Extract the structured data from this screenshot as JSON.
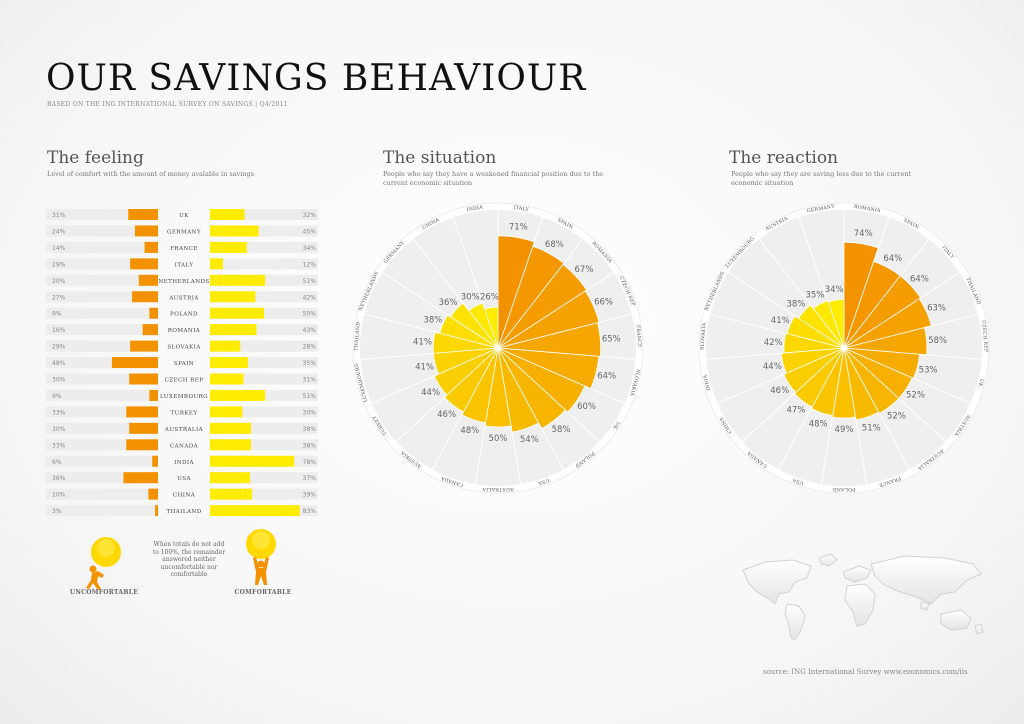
{
  "page": {
    "title": "OUR SAVINGS BEHAVIOUR",
    "subtitle": "BASED ON THE ING INTERNATIONAL SURVEY ON SAVINGS | Q4/2011",
    "source": "source: ING International Survey www.ezonomics.com/iis"
  },
  "colors": {
    "orange": "#f39200",
    "yellow": "#ffec00",
    "track": "#ededed"
  },
  "legend": {
    "uncomfortable": "UNCOMFORTABLE",
    "comfortable": "COMFORTABLE",
    "note": "When totals do not add to 100%, the remainder answered neither uncomfortable nor comfortable"
  },
  "chart_data": [
    {
      "id": "feeling",
      "type": "bar",
      "title": "The feeling",
      "subtitle": "Level of comfort with the amount of money avalable in savings",
      "categories": [
        "UK",
        "GERMANY",
        "FRANCE",
        "ITALY",
        "NETHERLANDS",
        "AUSTRIA",
        "POLAND",
        "ROMANIA",
        "SLOVAKIA",
        "SPAIN",
        "CZECH REP",
        "LUXEMBOURG",
        "TURKEY",
        "AUSTRALIA",
        "CANADA",
        "INDIA",
        "USA",
        "CHINA",
        "THAILAND"
      ],
      "series": [
        {
          "name": "UNCOMFORTABLE",
          "values": [
            31,
            24,
            14,
            29,
            20,
            27,
            9,
            16,
            29,
            48,
            30,
            9,
            33,
            30,
            33,
            6,
            36,
            10,
            3
          ]
        },
        {
          "name": "COMFORTABLE",
          "values": [
            32,
            45,
            34,
            12,
            51,
            42,
            50,
            43,
            28,
            35,
            31,
            51,
            30,
            38,
            38,
            78,
            37,
            39,
            83
          ]
        }
      ],
      "value_labels_left": [
        "31%",
        "24%",
        "14%",
        "29%",
        "20%",
        "27%",
        "9%",
        "16%",
        "29%",
        "48%",
        "30%",
        "9%",
        "33%",
        "30%",
        "33%",
        "6%",
        "36%",
        "10%",
        "3%"
      ],
      "value_labels_right": [
        "32%",
        "45%",
        "34%",
        "12%",
        "51%",
        "42%",
        "50%",
        "43%",
        "28%",
        "35%",
        "31%",
        "51%",
        "30%",
        "38%",
        "38%",
        "78%",
        "37%",
        "39%",
        "83%"
      ]
    },
    {
      "id": "situation",
      "type": "polar-bar",
      "title": "The situation",
      "subtitle": "People who say they have a weakened financial position due to the current economic situation",
      "categories": [
        "ITALY",
        "SPAIN",
        "ROMANIA",
        "CZECH REP",
        "FRANCE",
        "SLOVAKIA",
        "UK",
        "POLAND",
        "USA",
        "AUSTRALIA",
        "CANADA",
        "AUSTRIA",
        "TURKEY",
        "LUXEMBOURG",
        "THAILAND",
        "NETHERLANDS",
        "GERMANY",
        "CHINA",
        "INDIA"
      ],
      "values": [
        71,
        68,
        67,
        66,
        65,
        64,
        60,
        58,
        54,
        50,
        48,
        46,
        44,
        41,
        41,
        38,
        36,
        30,
        26
      ],
      "value_labels": [
        "71%",
        "68%",
        "67%",
        "66%",
        "65%",
        "64%",
        "60%",
        "58%",
        "54%",
        "50%",
        "48%",
        "46%",
        "44%",
        "41%",
        "41%",
        "38%",
        "36%",
        "30%",
        "26%"
      ]
    },
    {
      "id": "reaction",
      "type": "polar-bar",
      "title": "The reaction",
      "subtitle": "People who say they are saving less due to the current economic situation",
      "categories": [
        "ROMANIA",
        "SPAIN",
        "ITALY",
        "THAILAND",
        "CZECH REP",
        "UK",
        "AUSTRIA",
        "AUSTRALIA",
        "FRANCE",
        "POLAND",
        "USA",
        "CANADA",
        "CHINA",
        "INDIA",
        "SLOVAKIA",
        "NETHERLANDS",
        "LUXEMBOURG",
        "AUSTRIA",
        "GERMANY"
      ],
      "values": [
        74,
        64,
        64,
        63,
        58,
        53,
        52,
        52,
        51,
        49,
        48,
        47,
        46,
        44,
        42,
        41,
        38,
        35,
        34
      ],
      "value_labels": [
        "74%",
        "64%",
        "64%",
        "63%",
        "58%",
        "53%",
        "52%",
        "52%",
        "51%",
        "49%",
        "48%",
        "47%",
        "46%",
        "44%",
        "42%",
        "41%",
        "38%",
        "35%",
        "34%"
      ]
    }
  ]
}
